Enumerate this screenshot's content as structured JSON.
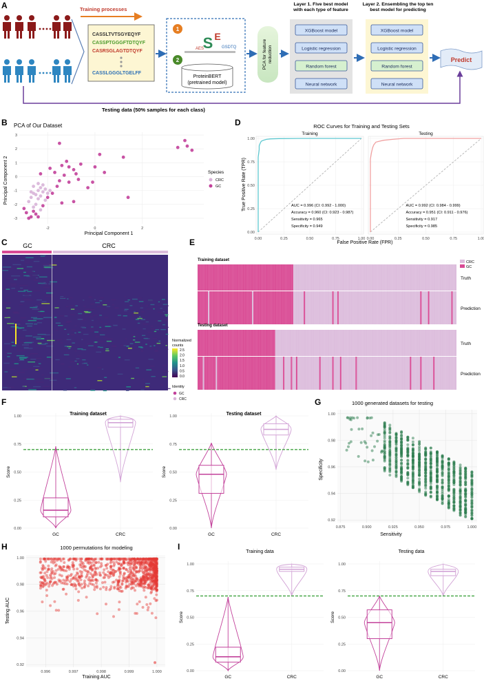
{
  "panelA": {
    "letter": "A",
    "training_label": "Training processes",
    "sequences": [
      {
        "text": "CASSLTVTSGYEQYF",
        "color": "#333333"
      },
      {
        "text": "CASSPTGGGFTDTQYF",
        "color": "#4a9a2a"
      },
      {
        "text": "CASRSGLAGTDTQYF",
        "color": "#c0392b"
      },
      {
        "text": "CASSLGGGLTGELFF",
        "color": "#2b6fb5"
      }
    ],
    "step1": "1",
    "step2": "2",
    "proteinbert": "ProteinBERT\n(pretrained model)",
    "pca_box": "PCA for feature reduction",
    "layer1_title": "Layer 1. Five best model with each type of feature",
    "layer2_title": "Layer 2. Ensembling the top ten best model for predicting",
    "models": [
      "XGBoost model",
      "Logistic regression",
      "Random forest",
      "Neural network"
    ],
    "model_colors": [
      "#cfe0f7",
      "#cfe0f7",
      "#d6f0cf",
      "#cfe0f7"
    ],
    "predict": "Predict",
    "testing_label": "Testing data (50% samples for each class)",
    "colors": {
      "dark_red": "#8b1a1a",
      "blue": "#2e86c1",
      "purple": "#6a3d9a",
      "arrow_orange": "#e67e22"
    }
  },
  "panelB": {
    "letter": "B",
    "chart_data": {
      "type": "scatter",
      "title": "PCA of Our Dataset",
      "xlabel": "Principal Component 1",
      "ylabel": "Principal Component 2",
      "xticks": [
        -2,
        0,
        2
      ],
      "yticks": [
        -3,
        -2,
        -1,
        0,
        1,
        2,
        3
      ],
      "xlim": [
        -3.2,
        4.6
      ],
      "ylim": [
        -3.4,
        3.2
      ],
      "legend_title": "Species",
      "series": [
        {
          "name": "CRC",
          "color": "#d8b4d8",
          "points": [
            [
              -2.6,
              -1.2
            ],
            [
              -2.4,
              -1.0
            ],
            [
              -2.7,
              -1.5
            ],
            [
              -2.3,
              -0.8
            ],
            [
              -2.5,
              -1.3
            ],
            [
              -2.2,
              -1.1
            ],
            [
              -2.8,
              -1.8
            ],
            [
              -2.4,
              -1.6
            ],
            [
              -2.1,
              -0.9
            ],
            [
              -2.6,
              -0.7
            ],
            [
              -2.3,
              -1.4
            ],
            [
              -2.0,
              -1.2
            ],
            [
              -2.5,
              -2.0
            ],
            [
              -2.2,
              -0.6
            ],
            [
              -2.7,
              -1.1
            ],
            [
              -1.9,
              -1.0
            ],
            [
              -2.4,
              -0.5
            ],
            [
              -2.6,
              -2.2
            ],
            [
              -2.1,
              -1.7
            ],
            [
              -2.3,
              -2.4
            ]
          ]
        },
        {
          "name": "GC",
          "color": "#c2409a",
          "points": [
            [
              -2.9,
              -2.6
            ],
            [
              -2.7,
              -2.9
            ],
            [
              -3.0,
              -2.3
            ],
            [
              -2.5,
              -2.7
            ],
            [
              -2.8,
              -3.0
            ],
            [
              -2.2,
              -2.1
            ],
            [
              -2.0,
              -1.5
            ],
            [
              -1.8,
              -1.2
            ],
            [
              -1.6,
              -0.7
            ],
            [
              -1.5,
              -0.3
            ],
            [
              -1.3,
              0.1
            ],
            [
              -1.1,
              -0.4
            ],
            [
              -0.9,
              0.5
            ],
            [
              -1.7,
              0.3
            ],
            [
              -1.4,
              0.8
            ],
            [
              -1.2,
              1.1
            ],
            [
              -0.8,
              0.2
            ],
            [
              -0.6,
              0.9
            ],
            [
              -1.9,
              0.6
            ],
            [
              -2.3,
              0.2
            ],
            [
              -1.5,
              2.4
            ],
            [
              -0.9,
              -1.8
            ],
            [
              -1.4,
              -1.9
            ],
            [
              -0.3,
              -0.8
            ],
            [
              -0.1,
              -0.4
            ],
            [
              0.2,
              1.6
            ],
            [
              0.4,
              0.3
            ],
            [
              1.2,
              1.4
            ],
            [
              1.4,
              -1.5
            ],
            [
              3.5,
              2.1
            ],
            [
              3.8,
              2.6
            ],
            [
              4.1,
              1.9
            ],
            [
              3.9,
              2.2
            ],
            [
              -2.6,
              -2.5
            ],
            [
              -2.4,
              -2.9
            ],
            [
              -1.1,
              0.7
            ],
            [
              -0.7,
              -0.2
            ],
            [
              0.0,
              0.7
            ]
          ]
        }
      ]
    }
  },
  "panelC": {
    "letter": "C",
    "gc_label": "GC",
    "crc_label": "CRC",
    "legend_title": "Normalized counts",
    "legend_ticks": [
      "2.5",
      "2.0",
      "1.5",
      "1.0",
      "0.5",
      "0.0"
    ],
    "identity_title": "Identity",
    "identity_items": [
      {
        "label": "GC",
        "color": "#c2409a"
      },
      {
        "label": "CRC",
        "color": "#d8b4d8"
      }
    ]
  },
  "panelD": {
    "letter": "D",
    "chart_data": {
      "type": "line",
      "title": "ROC Curves for Training and Testing Sets",
      "xlabel": "False Positive Rate (FPR)",
      "ylabel": "True Positive Rate (TPR)",
      "xticks": [
        "0.00",
        "0.25",
        "0.50",
        "0.75",
        "1.00"
      ],
      "yticks": [
        "0.00",
        "0.25",
        "0.50",
        "0.75",
        "1.00"
      ],
      "facets": [
        {
          "name": "Training",
          "color": "#5ec8d0",
          "x": [
            0,
            0,
            0.01,
            0.01,
            0.02,
            0.03,
            0.05,
            0.08,
            0.12,
            0.2,
            0.4,
            0.7,
            1.0
          ],
          "y": [
            0,
            0.8,
            0.88,
            0.92,
            0.95,
            0.97,
            0.98,
            0.99,
            0.995,
            0.998,
            1,
            1,
            1
          ],
          "stats": [
            "AUC = 0.996 (CI: 0.992 - 1.000)",
            "Accuracy = 0.960 (CI: 0.923 - 0.987)",
            "Sensitivity = 0.965",
            "Specificity = 0.949"
          ]
        },
        {
          "name": "Testing",
          "color": "#f0a0a0",
          "x": [
            0,
            0,
            0.01,
            0.02,
            0.03,
            0.05,
            0.08,
            0.12,
            0.2,
            0.3,
            0.5,
            1.0
          ],
          "y": [
            0,
            0.78,
            0.85,
            0.9,
            0.93,
            0.96,
            0.97,
            0.98,
            0.99,
            1,
            1,
            1
          ],
          "stats": [
            "AUC = 0.992 (CI: 0.984 - 0.999)",
            "Accuracy = 0.951 (CI: 0.911 - 0.976)",
            "Sensitivity = 0.917",
            "Specificity = 0.985"
          ]
        }
      ]
    }
  },
  "panelE": {
    "letter": "E",
    "legend": [
      {
        "label": "CRC",
        "color": "#dcbcdc"
      },
      {
        "label": "GC",
        "color": "#d94a94"
      }
    ],
    "blocks": [
      {
        "title": "Training dataset",
        "gc_fraction": 0.37,
        "truth": "Truth",
        "prediction": "Prediction",
        "errors_gc": [
          0.04,
          0.21
        ],
        "errors_crc": [
          0.41,
          0.52,
          0.54,
          0.86,
          0.89,
          0.98
        ]
      },
      {
        "title": "Testing dataset",
        "gc_fraction": 0.3,
        "truth": "Truth",
        "prediction": "Prediction",
        "errors_gc": [
          0.02,
          0.07
        ],
        "errors_crc": [
          0.33,
          0.36,
          0.38,
          0.47,
          0.52,
          0.55,
          0.61,
          0.82,
          0.86,
          0.91
        ]
      }
    ]
  },
  "panelF": {
    "letter": "F",
    "chart_data": [
      {
        "type": "box",
        "title": "Training  dataset",
        "ylabel": "Score",
        "categories": [
          "GC",
          "CRC"
        ],
        "yticks": [
          "0.00",
          "0.25",
          "0.50",
          "0.75",
          "1.00"
        ],
        "threshold": 0.7,
        "boxes": [
          {
            "q1": 0.1,
            "median": 0.16,
            "q3": 0.27,
            "min": 0.0,
            "max": 0.73
          },
          {
            "q1": 0.9,
            "median": 0.94,
            "q3": 0.97,
            "min": 0.41,
            "max": 1.0
          }
        ]
      },
      {
        "type": "box",
        "title": "Testing  dataset",
        "ylabel": "Score",
        "categories": [
          "GC",
          "CRC"
        ],
        "yticks": [
          "0.00",
          "0.25",
          "0.50",
          "0.75",
          "1.00"
        ],
        "threshold": 0.7,
        "boxes": [
          {
            "q1": 0.31,
            "median": 0.48,
            "q3": 0.56,
            "min": 0.0,
            "max": 0.76
          },
          {
            "q1": 0.83,
            "median": 0.88,
            "q3": 0.93,
            "min": 0.52,
            "max": 1.0
          }
        ]
      }
    ]
  },
  "panelG": {
    "letter": "G",
    "chart_data": {
      "type": "scatter",
      "title": "1000 generated datasets for testing",
      "xlabel": "Sensitivity",
      "ylabel": "Specificity",
      "xticks": [
        "0.875",
        "0.900",
        "0.925",
        "0.950",
        "0.975",
        "1.000"
      ],
      "yticks": [
        "0.92",
        "0.94",
        "0.96",
        "0.98",
        "1.00"
      ],
      "xlim": [
        0.872,
        1.005
      ],
      "ylim": [
        0.918,
        1.003
      ],
      "color": "#2e7d4f",
      "n_points": 1000
    }
  },
  "panelH": {
    "letter": "H",
    "chart_data": {
      "type": "scatter",
      "title": "1000 permutations for modeling",
      "xlabel": "Training AUC",
      "ylabel": "Testing AUC",
      "xticks": [
        "0.996",
        "0.997",
        "0.998",
        "0.999",
        "1.000"
      ],
      "yticks": [
        "0.92",
        "0.94",
        "0.96",
        "0.98",
        "1.00"
      ],
      "xlim": [
        0.9953,
        1.0003
      ],
      "ylim": [
        0.918,
        1.002
      ],
      "color": "#e53935",
      "n_points": 1000
    }
  },
  "panelI": {
    "letter": "I",
    "chart_data": [
      {
        "type": "box",
        "title": "Training data",
        "ylabel": "Score",
        "categories": [
          "GC",
          "CRC"
        ],
        "yticks": [
          "0.00",
          "0.25",
          "0.50",
          "0.75",
          "1.00"
        ],
        "threshold": 0.7,
        "boxes": [
          {
            "q1": 0.08,
            "median": 0.13,
            "q3": 0.22,
            "min": 0.0,
            "max": 0.69
          },
          {
            "q1": 0.93,
            "median": 0.95,
            "q3": 0.97,
            "min": 0.7,
            "max": 1.0
          }
        ]
      },
      {
        "type": "box",
        "title": "Testing data",
        "ylabel": "Score",
        "categories": [
          "GC",
          "CRC"
        ],
        "yticks": [
          "0.00",
          "0.25",
          "0.50",
          "0.75",
          "1.00"
        ],
        "threshold": 0.7,
        "boxes": [
          {
            "q1": 0.3,
            "median": 0.45,
            "q3": 0.57,
            "min": 0.0,
            "max": 0.7
          },
          {
            "q1": 0.89,
            "median": 0.93,
            "q3": 0.95,
            "min": 0.7,
            "max": 1.0
          }
        ]
      }
    ]
  }
}
